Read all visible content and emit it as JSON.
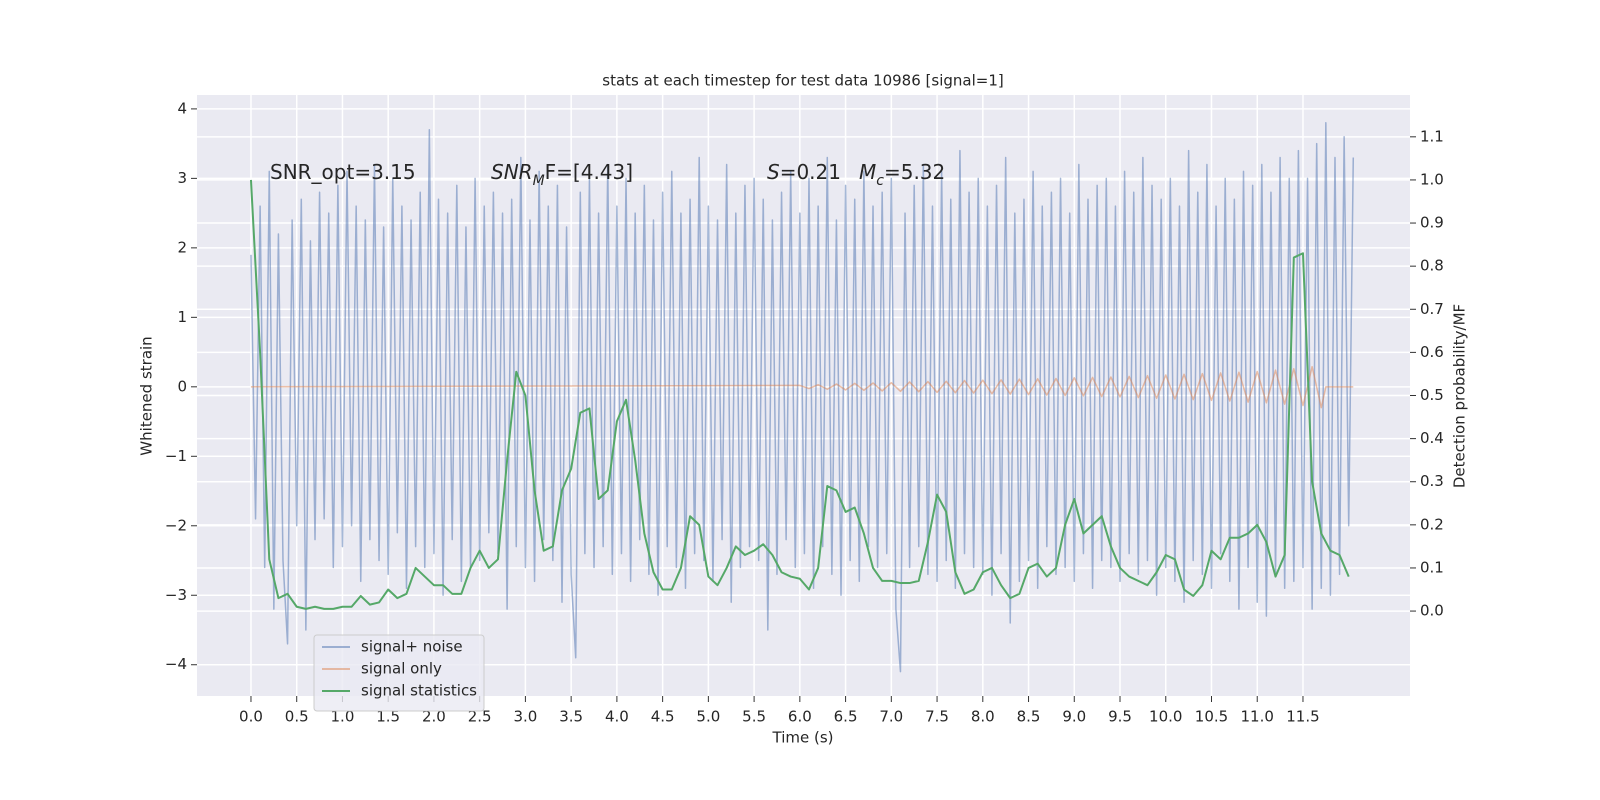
{
  "chart_data": {
    "type": "line",
    "title": "stats at each timestep for test data 10986 [signal=1]",
    "xlabel": "Time (s)",
    "ylabel": "Whitened strain",
    "y2label": "Detection probability/MF",
    "annotations": [
      {
        "text": "SNR_opt=3.15"
      },
      {
        "base": "SNR",
        "sub": "M",
        "rest": "F=[4.43]"
      },
      {
        "base": "S",
        "rest": "=0.21"
      },
      {
        "base": "M",
        "sub": "c",
        "rest": "=5.32"
      }
    ],
    "xlim": [
      -0.59,
      12.67
    ],
    "ylim": [
      -4.45,
      4.2
    ],
    "y2lim": [
      -0.197,
      1.197
    ],
    "xticks": [
      {
        "value": 0,
        "label": "0.0"
      },
      0.5,
      {
        "value": 1,
        "label": "1.0"
      },
      1.5,
      {
        "value": 2,
        "label": "2.0"
      },
      2.5,
      {
        "value": 3,
        "label": "3.0"
      },
      3.5,
      {
        "value": 4,
        "label": "4.0"
      },
      4.5,
      {
        "value": 5,
        "label": "5.0"
      },
      5.5,
      {
        "value": 6,
        "label": "6.0"
      },
      6.5,
      {
        "value": 7,
        "label": "7.0"
      },
      7.5,
      {
        "value": 8,
        "label": "8.0"
      },
      8.5,
      {
        "value": 9,
        "label": "9.0"
      },
      9.5,
      {
        "value": 10,
        "label": "10.0"
      },
      10.5,
      {
        "value": 11,
        "label": "11.0"
      },
      11.5
    ],
    "yticks": [
      {
        "value": -4,
        "label": "−4"
      },
      {
        "value": -3,
        "label": "−3"
      },
      {
        "value": -2,
        "label": "−2"
      },
      {
        "value": -1,
        "label": "−1"
      },
      0,
      1,
      2,
      3,
      4
    ],
    "y2ticks": [
      {
        "value": 0,
        "label": "0.0"
      },
      0.1,
      0.2,
      0.3,
      0.4,
      0.5,
      0.6,
      0.7,
      0.8,
      0.9,
      {
        "value": 1,
        "label": "1.0"
      },
      1.1
    ],
    "grid": true,
    "legend": "lower left",
    "series": [
      {
        "name": "signal+ noise",
        "color": "#4c72b0",
        "opacity": 0.5,
        "x": [
          0,
          0.05,
          0.1,
          0.15,
          0.2,
          0.25,
          0.3,
          0.35,
          0.4,
          0.45,
          0.5,
          0.55,
          0.6,
          0.65,
          0.7,
          0.75,
          0.8,
          0.85,
          0.9,
          0.95,
          1,
          1.05,
          1.1,
          1.15,
          1.2,
          1.25,
          1.3,
          1.35,
          1.4,
          1.45,
          1.5,
          1.55,
          1.6,
          1.65,
          1.7,
          1.75,
          1.8,
          1.85,
          1.9,
          1.95,
          2,
          2.05,
          2.1,
          2.15,
          2.2,
          2.25,
          2.3,
          2.35,
          2.4,
          2.45,
          2.5,
          2.55,
          2.6,
          2.65,
          2.7,
          2.75,
          2.8,
          2.85,
          2.9,
          2.95,
          3,
          3.05,
          3.1,
          3.15,
          3.2,
          3.25,
          3.3,
          3.35,
          3.4,
          3.45,
          3.5,
          3.55,
          3.6,
          3.65,
          3.7,
          3.75,
          3.8,
          3.85,
          3.9,
          3.95,
          4,
          4.05,
          4.1,
          4.15,
          4.2,
          4.25,
          4.3,
          4.35,
          4.4,
          4.45,
          4.5,
          4.55,
          4.6,
          4.65,
          4.7,
          4.75,
          4.8,
          4.85,
          4.9,
          4.95,
          5,
          5.05,
          5.1,
          5.15,
          5.2,
          5.25,
          5.3,
          5.35,
          5.4,
          5.45,
          5.5,
          5.55,
          5.6,
          5.65,
          5.7,
          5.75,
          5.8,
          5.85,
          5.9,
          5.95,
          6,
          6.05,
          6.1,
          6.15,
          6.2,
          6.25,
          6.3,
          6.35,
          6.4,
          6.45,
          6.5,
          6.55,
          6.6,
          6.65,
          6.7,
          6.75,
          6.8,
          6.85,
          6.9,
          6.95,
          7,
          7.05,
          7.1,
          7.15,
          7.2,
          7.25,
          7.3,
          7.35,
          7.4,
          7.45,
          7.5,
          7.55,
          7.6,
          7.65,
          7.7,
          7.75,
          7.8,
          7.85,
          7.9,
          7.95,
          8,
          8.05,
          8.1,
          8.15,
          8.2,
          8.25,
          8.3,
          8.35,
          8.4,
          8.45,
          8.5,
          8.55,
          8.6,
          8.65,
          8.7,
          8.75,
          8.8,
          8.85,
          8.9,
          8.95,
          9,
          9.05,
          9.1,
          9.15,
          9.2,
          9.25,
          9.3,
          9.35,
          9.4,
          9.45,
          9.5,
          9.55,
          9.6,
          9.65,
          9.7,
          9.75,
          9.8,
          9.85,
          9.9,
          9.95,
          10,
          10.05,
          10.1,
          10.15,
          10.2,
          10.25,
          10.3,
          10.35,
          10.4,
          10.45,
          10.5,
          10.55,
          10.6,
          10.65,
          10.7,
          10.75,
          10.8,
          10.85,
          10.9,
          10.95,
          11,
          11.05,
          11.1,
          11.15,
          11.2,
          11.25,
          11.3,
          11.35,
          11.4,
          11.45,
          11.5,
          11.55,
          11.6,
          11.65,
          11.7,
          11.75,
          11.8,
          11.85,
          11.9,
          11.95,
          12,
          12.05
        ],
        "values": [
          1.9,
          -1.9,
          2.6,
          -2.6,
          3.1,
          -3.2,
          2.2,
          -2.5,
          -3.7,
          2.4,
          -2.0,
          2.7,
          -3.5,
          2.1,
          -2.2,
          2.8,
          -1.9,
          2.5,
          -2.6,
          2.9,
          -2.3,
          3.1,
          -2.0,
          2.6,
          -2.8,
          2.4,
          -2.2,
          3.2,
          -2.5,
          2.3,
          -2.7,
          3.0,
          -2.1,
          2.6,
          -2.9,
          2.4,
          -2.3,
          2.8,
          -2.6,
          3.7,
          -2.4,
          2.7,
          -3.0,
          2.5,
          -2.2,
          2.9,
          -2.8,
          2.3,
          -2.6,
          3.0,
          -2.5,
          2.6,
          -2.1,
          2.8,
          -2.4,
          2.5,
          -3.2,
          2.7,
          -2.3,
          3.3,
          -2.6,
          2.4,
          -2.8,
          3.1,
          -2.2,
          2.6,
          -2.5,
          2.9,
          -3.1,
          2.3,
          -2.7,
          -3.9,
          2.8,
          -2.4,
          3.0,
          -2.6,
          2.5,
          -2.3,
          3.2,
          -2.7,
          2.6,
          -2.4,
          3.0,
          -2.8,
          2.5,
          -2.2,
          2.9,
          -2.7,
          2.4,
          -3.0,
          2.8,
          -2.3,
          3.1,
          -2.6,
          2.5,
          -2.9,
          2.7,
          -2.4,
          3.3,
          -2.5,
          2.6,
          -2.8,
          2.4,
          -2.2,
          3.2,
          -3.1,
          2.5,
          -2.6,
          2.9,
          -2.3,
          3.0,
          -2.5,
          2.7,
          -3.5,
          2.4,
          -2.7,
          2.8,
          -2.2,
          3.1,
          -2.6,
          2.5,
          -2.4,
          3.0,
          -2.9,
          2.6,
          -2.3,
          3.3,
          -2.7,
          2.4,
          -3.0,
          2.9,
          -2.5,
          2.7,
          -2.8,
          3.1,
          -2.3,
          2.6,
          -2.6,
          2.8,
          -2.4,
          3.0,
          -3.2,
          -4.1,
          2.5,
          -2.6,
          2.9,
          -2.3,
          3.2,
          -2.7,
          2.6,
          -2.8,
          3.1,
          -2.5,
          2.7,
          -2.9,
          3.4,
          -2.4,
          2.8,
          -2.6,
          3.0,
          -2.7,
          2.6,
          -3.0,
          2.9,
          -2.4,
          3.3,
          -3.4,
          2.5,
          -2.8,
          2.7,
          -2.5,
          3.1,
          -2.9,
          2.6,
          -2.3,
          2.8,
          -2.7,
          3.0,
          -2.6,
          2.5,
          -2.8,
          3.2,
          -2.4,
          2.7,
          -2.9,
          2.9,
          -2.5,
          3.0,
          -2.6,
          2.6,
          -2.8,
          3.1,
          -2.4,
          2.8,
          -2.7,
          3.3,
          -2.5,
          2.9,
          -3.0,
          2.7,
          -2.6,
          3.0,
          -2.8,
          2.6,
          -3.1,
          3.4,
          -2.5,
          2.8,
          -2.7,
          3.2,
          -2.9,
          2.6,
          -2.4,
          3.0,
          -2.8,
          2.7,
          -3.2,
          3.1,
          -2.6,
          2.9,
          -3.1,
          3.2,
          -3.3,
          2.8,
          -2.7,
          3.3,
          -2.9,
          3.0,
          -2.8,
          3.4,
          -2.6,
          3.0,
          -3.2,
          3.5,
          -2.9,
          3.8,
          -3.0,
          3.3,
          -2.7,
          3.6,
          -2.0,
          3.3
        ]
      },
      {
        "name": "signal only",
        "color": "#dd8452",
        "opacity": 0.5,
        "x": [
          0,
          6,
          6.1,
          6.2,
          6.3,
          6.4,
          6.5,
          6.6,
          6.7,
          6.8,
          6.9,
          7,
          7.1,
          7.2,
          7.3,
          7.4,
          7.5,
          7.6,
          7.7,
          7.8,
          7.9,
          8,
          8.1,
          8.2,
          8.3,
          8.4,
          8.5,
          8.6,
          8.7,
          8.8,
          8.9,
          9,
          9.1,
          9.2,
          9.3,
          9.4,
          9.5,
          9.6,
          9.7,
          9.8,
          9.9,
          10,
          10.1,
          10.2,
          10.3,
          10.4,
          10.5,
          10.6,
          10.7,
          10.8,
          10.9,
          11,
          11.1,
          11.2,
          11.3,
          11.4,
          11.5,
          11.6,
          11.7,
          11.75,
          12.05
        ],
        "values": [
          0,
          0.02,
          -0.025,
          0.03,
          -0.035,
          0.04,
          -0.045,
          0.05,
          -0.05,
          0.055,
          -0.06,
          0.06,
          -0.065,
          0.07,
          -0.07,
          0.075,
          -0.08,
          0.08,
          -0.085,
          0.09,
          -0.09,
          0.095,
          -0.1,
          0.1,
          -0.105,
          0.11,
          -0.11,
          0.115,
          -0.12,
          0.12,
          -0.125,
          0.13,
          -0.13,
          0.135,
          -0.14,
          0.14,
          -0.145,
          0.15,
          -0.155,
          0.16,
          -0.165,
          0.17,
          -0.175,
          0.18,
          -0.185,
          0.19,
          -0.195,
          0.2,
          -0.205,
          0.21,
          -0.22,
          0.22,
          -0.23,
          0.24,
          -0.25,
          0.26,
          -0.27,
          0.29,
          -0.3,
          0,
          0
        ]
      },
      {
        "name": "signal statistics",
        "color": "#55a868",
        "opacity": 1,
        "axis": "y2",
        "x": [
          0,
          0.1,
          0.2,
          0.3,
          0.4,
          0.5,
          0.6,
          0.7,
          0.8,
          0.9,
          1,
          1.1,
          1.2,
          1.3,
          1.4,
          1.5,
          1.6,
          1.7,
          1.8,
          1.9,
          2,
          2.1,
          2.2,
          2.3,
          2.4,
          2.5,
          2.6,
          2.7,
          2.8,
          2.9,
          3,
          3.1,
          3.2,
          3.3,
          3.4,
          3.5,
          3.6,
          3.7,
          3.8,
          3.9,
          4,
          4.1,
          4.2,
          4.3,
          4.4,
          4.5,
          4.6,
          4.7,
          4.8,
          4.9,
          5,
          5.1,
          5.2,
          5.3,
          5.4,
          5.5,
          5.6,
          5.7,
          5.8,
          5.9,
          6,
          6.1,
          6.2,
          6.3,
          6.4,
          6.5,
          6.6,
          6.7,
          6.8,
          6.9,
          7,
          7.1,
          7.2,
          7.3,
          7.4,
          7.5,
          7.6,
          7.7,
          7.8,
          7.9,
          8,
          8.1,
          8.2,
          8.3,
          8.4,
          8.5,
          8.6,
          8.7,
          8.8,
          8.9,
          9,
          9.1,
          9.2,
          9.3,
          9.4,
          9.5,
          9.6,
          9.7,
          9.8,
          9.9,
          10,
          10.1,
          10.2,
          10.3,
          10.4,
          10.5,
          10.6,
          10.7,
          10.8,
          10.9,
          11,
          11.1,
          11.2,
          11.3,
          11.4,
          11.5,
          11.6,
          11.7,
          11.8,
          11.9,
          12
        ],
        "values": [
          1.0,
          0.6,
          0.12,
          0.03,
          0.04,
          0.01,
          0.005,
          0.01,
          0.005,
          0.005,
          0.01,
          0.01,
          0.035,
          0.015,
          0.02,
          0.05,
          0.03,
          0.04,
          0.1,
          0.08,
          0.06,
          0.06,
          0.04,
          0.04,
          0.1,
          0.14,
          0.1,
          0.12,
          0.35,
          0.555,
          0.5,
          0.28,
          0.14,
          0.15,
          0.28,
          0.33,
          0.46,
          0.47,
          0.26,
          0.28,
          0.44,
          0.49,
          0.35,
          0.18,
          0.09,
          0.05,
          0.05,
          0.1,
          0.22,
          0.2,
          0.08,
          0.06,
          0.1,
          0.15,
          0.13,
          0.14,
          0.155,
          0.13,
          0.09,
          0.08,
          0.075,
          0.05,
          0.1,
          0.29,
          0.28,
          0.23,
          0.24,
          0.18,
          0.1,
          0.07,
          0.07,
          0.065,
          0.065,
          0.07,
          0.16,
          0.27,
          0.23,
          0.09,
          0.04,
          0.05,
          0.09,
          0.1,
          0.06,
          0.03,
          0.04,
          0.1,
          0.11,
          0.08,
          0.1,
          0.2,
          0.26,
          0.18,
          0.2,
          0.22,
          0.15,
          0.1,
          0.08,
          0.07,
          0.06,
          0.09,
          0.13,
          0.12,
          0.05,
          0.035,
          0.06,
          0.14,
          0.12,
          0.17,
          0.17,
          0.18,
          0.2,
          0.16,
          0.08,
          0.13,
          0.82,
          0.83,
          0.3,
          0.18,
          0.14,
          0.13,
          0.08
        ]
      }
    ]
  }
}
